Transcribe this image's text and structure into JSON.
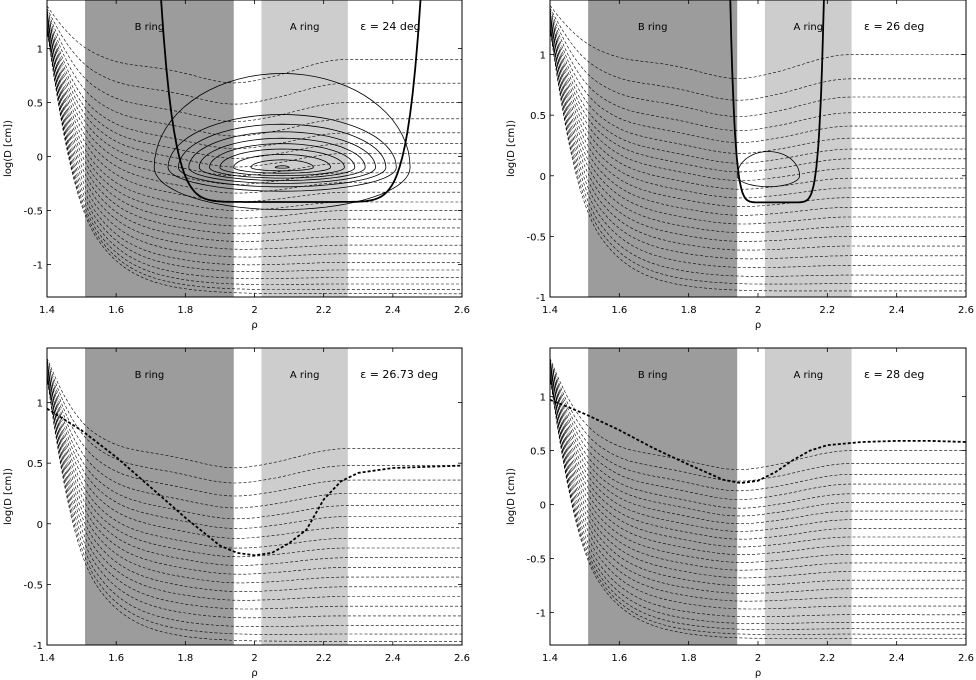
{
  "figure": {
    "panels": [
      {
        "epsilon_label": "ε = 24 deg",
        "ring_b_label": "B ring",
        "ring_a_label": "A ring",
        "xlabel": "ρ",
        "ylabel": "log(D [cm])"
      },
      {
        "epsilon_label": "ε = 26 deg",
        "ring_b_label": "B ring",
        "ring_a_label": "A ring",
        "xlabel": "ρ",
        "ylabel": "log(D [cm])"
      },
      {
        "epsilon_label": "ε = 26.73 deg",
        "ring_b_label": "B ring",
        "ring_a_label": "A ring",
        "xlabel": "ρ",
        "ylabel": "log(D [cm])"
      },
      {
        "epsilon_label": "ε = 28 deg",
        "ring_b_label": "B ring",
        "ring_a_label": "A ring",
        "xlabel": "ρ",
        "ylabel": "log(D [cm])"
      }
    ]
  },
  "chart_data": [
    {
      "type": "line",
      "title": "",
      "annotation": "ε = 24 deg",
      "xlabel": "ρ",
      "ylabel": "log(D [cm])",
      "xlim": [
        1.4,
        2.6
      ],
      "ylim": [
        -1.3,
        1.45
      ],
      "xticks": [
        "1.4",
        "1.6",
        "1.8",
        "2",
        "2.2",
        "2.4",
        "2.6"
      ],
      "yticks": [
        "-1",
        "-0.5",
        "0",
        "0.5",
        "1"
      ],
      "shaded_regions": [
        {
          "label": "B ring",
          "x_range": [
            1.51,
            1.94
          ],
          "color": "#9c9c9c"
        },
        {
          "label": "A ring",
          "x_range": [
            2.02,
            2.27
          ],
          "color": "#cdcdcd"
        }
      ],
      "dashed_contour_levels": [
        0.9,
        0.68,
        0.5,
        0.35,
        0.22,
        0.12,
        0.03,
        -0.06,
        -0.15,
        -0.24,
        -0.33,
        -0.42,
        -0.5,
        -0.58,
        -0.66,
        -0.74,
        -0.82,
        -0.9,
        -0.98,
        -1.05,
        -1.12,
        -1.18,
        -1.23,
        -1.27
      ],
      "solid_closed_contours": [
        {
          "center_x": 2.08,
          "center_y": -0.1,
          "half_width": 0.37,
          "half_height": 0.87
        },
        {
          "center_x": 2.08,
          "center_y": -0.1,
          "half_width": 0.33,
          "half_height": 0.49
        },
        {
          "center_x": 2.08,
          "center_y": -0.1,
          "half_width": 0.3,
          "half_height": 0.4
        },
        {
          "center_x": 2.08,
          "center_y": -0.1,
          "half_width": 0.27,
          "half_height": 0.33
        },
        {
          "center_x": 2.08,
          "center_y": -0.1,
          "half_width": 0.24,
          "half_height": 0.27
        },
        {
          "center_x": 2.08,
          "center_y": -0.1,
          "half_width": 0.21,
          "half_height": 0.22
        },
        {
          "center_x": 2.08,
          "center_y": -0.1,
          "half_width": 0.18,
          "half_height": 0.17
        },
        {
          "center_x": 2.08,
          "center_y": -0.1,
          "half_width": 0.14,
          "half_height": 0.12
        },
        {
          "center_x": 2.08,
          "center_y": -0.1,
          "half_width": 0.09,
          "half_height": 0.07
        },
        {
          "center_x": 2.08,
          "center_y": -0.1,
          "half_width": 0.02,
          "half_height": 0.015
        }
      ],
      "solid_separatrix": {
        "x_left": 1.73,
        "x_right": 2.48,
        "y_bottom": -0.42
      },
      "dashed_separatrix": null
    },
    {
      "type": "line",
      "title": "",
      "annotation": "ε = 26 deg",
      "xlabel": "ρ",
      "ylabel": "log(D [cm])",
      "xlim": [
        1.4,
        2.6
      ],
      "ylim": [
        -1,
        1.45
      ],
      "xticks": [
        "1.4",
        "1.6",
        "1.8",
        "2",
        "2.2",
        "2.4",
        "2.6"
      ],
      "yticks": [
        "-1",
        "-0.5",
        "0",
        "0.5",
        "1"
      ],
      "shaded_regions": [
        {
          "label": "B ring",
          "x_range": [
            1.51,
            1.94
          ],
          "color": "#9c9c9c"
        },
        {
          "label": "A ring",
          "x_range": [
            2.02,
            2.27
          ],
          "color": "#cdcdcd"
        }
      ],
      "dashed_contour_levels": [
        1.0,
        0.8,
        0.65,
        0.52,
        0.41,
        0.31,
        0.22,
        0.14,
        0.06,
        -0.02,
        -0.1,
        -0.18,
        -0.26,
        -0.34,
        -0.42,
        -0.5,
        -0.58,
        -0.66,
        -0.74,
        -0.82,
        -0.89,
        -0.95
      ],
      "solid_closed_contours": [
        {
          "center_x": 2.03,
          "center_y": 0.0,
          "half_width": 0.09,
          "half_height": 0.2
        }
      ],
      "solid_separatrix": {
        "x_left": 1.92,
        "x_right": 2.19,
        "y_bottom": -0.22
      },
      "dashed_separatrix": null
    },
    {
      "type": "line",
      "title": "",
      "annotation": "ε = 26.73 deg",
      "xlabel": "ρ",
      "ylabel": "log(D [cm])",
      "xlim": [
        1.4,
        2.6
      ],
      "ylim": [
        -1,
        1.45
      ],
      "xticks": [
        "1.4",
        "1.6",
        "1.8",
        "2",
        "2.2",
        "2.4",
        "2.6"
      ],
      "yticks": [
        "-1",
        "-0.5",
        "0",
        "0.5",
        "1"
      ],
      "shaded_regions": [
        {
          "label": "B ring",
          "x_range": [
            1.51,
            1.94
          ],
          "color": "#9c9c9c"
        },
        {
          "label": "A ring",
          "x_range": [
            2.02,
            2.27
          ],
          "color": "#cdcdcd"
        }
      ],
      "dashed_contour_levels": [
        0.62,
        0.48,
        0.36,
        0.25,
        0.15,
        0.06,
        -0.03,
        -0.12,
        -0.2,
        -0.28,
        -0.36,
        -0.44,
        -0.52,
        -0.6,
        -0.68,
        -0.76,
        -0.84,
        -0.91,
        -0.97
      ],
      "solid_closed_contours": [],
      "solid_separatrix": null,
      "dashed_separatrix": {
        "x": [
          1.4,
          1.5,
          1.6,
          1.7,
          1.8,
          1.9,
          1.95,
          2.0,
          2.05,
          2.1,
          2.15,
          2.2,
          2.25,
          2.3,
          2.4,
          2.5,
          2.6
        ],
        "y": [
          0.95,
          0.77,
          0.55,
          0.3,
          0.05,
          -0.18,
          -0.24,
          -0.26,
          -0.24,
          -0.16,
          -0.05,
          0.2,
          0.35,
          0.42,
          0.46,
          0.47,
          0.48
        ]
      }
    },
    {
      "type": "line",
      "title": "",
      "annotation": "ε = 28 deg",
      "xlabel": "ρ",
      "ylabel": "log(D [cm])",
      "xlim": [
        1.4,
        2.6
      ],
      "ylim": [
        -1.3,
        1.45
      ],
      "xticks": [
        "1.4",
        "1.6",
        "1.8",
        "2",
        "2.2",
        "2.4",
        "2.6"
      ],
      "yticks": [
        "-1",
        "-0.5",
        "0",
        "0.5",
        "1"
      ],
      "shaded_regions": [
        {
          "label": "B ring",
          "x_range": [
            1.51,
            1.94
          ],
          "color": "#9c9c9c"
        },
        {
          "label": "A ring",
          "x_range": [
            2.02,
            2.27
          ],
          "color": "#cdcdcd"
        }
      ],
      "dashed_contour_levels": [
        0.5,
        0.38,
        0.28,
        0.19,
        0.1,
        0.02,
        -0.06,
        -0.14,
        -0.22,
        -0.3,
        -0.38,
        -0.46,
        -0.54,
        -0.62,
        -0.7,
        -0.78,
        -0.86,
        -0.94,
        -1.02,
        -1.09,
        -1.15,
        -1.2,
        -1.24
      ],
      "solid_closed_contours": [],
      "solid_separatrix": null,
      "dashed_separatrix": {
        "x": [
          1.4,
          1.5,
          1.6,
          1.7,
          1.8,
          1.9,
          1.95,
          2.0,
          2.05,
          2.1,
          2.15,
          2.2,
          2.3,
          2.4,
          2.5,
          2.6
        ],
        "y": [
          0.97,
          0.84,
          0.69,
          0.52,
          0.37,
          0.23,
          0.2,
          0.22,
          0.3,
          0.41,
          0.5,
          0.55,
          0.58,
          0.59,
          0.59,
          0.58
        ]
      }
    }
  ]
}
